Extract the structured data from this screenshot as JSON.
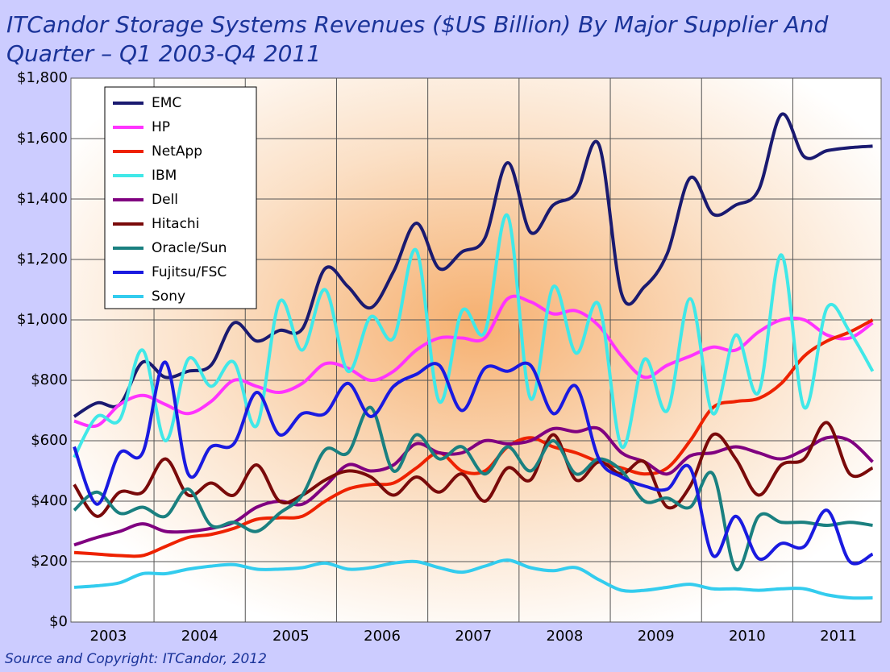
{
  "chart_data": {
    "type": "line",
    "title": [
      "ITCandor Storage Systems Revenues ($US Billion) By Major Supplier And",
      "Quarter – Q1 2003-Q4 2011"
    ],
    "source": "Source and Copyright: ITCandor, 2012",
    "categories": [
      "2003",
      null,
      null,
      null,
      "2004",
      null,
      null,
      null,
      "2005",
      null,
      null,
      null,
      "2006",
      null,
      null,
      null,
      "2007",
      null,
      null,
      null,
      "2008",
      null,
      null,
      null,
      "2009",
      null,
      null,
      null,
      "2010",
      null,
      null,
      null,
      "2011",
      null,
      null,
      null
    ],
    "ylim": [
      0,
      1800
    ],
    "yticks": [
      {
        "value": 0,
        "label": "$0"
      },
      {
        "value": 200,
        "label": "$200"
      },
      {
        "value": 400,
        "label": "$400"
      },
      {
        "value": 600,
        "label": "$600"
      },
      {
        "value": 800,
        "label": "$800"
      },
      {
        "value": 1000,
        "label": "$1,000"
      },
      {
        "value": 1200,
        "label": "$1,200"
      },
      {
        "value": 1400,
        "label": "$1,400"
      },
      {
        "value": 1600,
        "label": "$1,600"
      },
      {
        "value": 1800,
        "label": "$1,800"
      }
    ],
    "grid": true,
    "legend": "upper left",
    "series": [
      {
        "name": "EMC",
        "color": "#1a1a70",
        "values": [
          680,
          725,
          720,
          860,
          810,
          830,
          850,
          990,
          930,
          965,
          970,
          1170,
          1110,
          1040,
          1160,
          1320,
          1170,
          1225,
          1270,
          1520,
          1290,
          1380,
          1420,
          1580,
          1085,
          1110,
          1220,
          1470,
          1350,
          1380,
          1430,
          1680,
          1540,
          1560,
          1570,
          1575
        ]
      },
      {
        "name": "HP",
        "color": "#ff33ff",
        "values": [
          665,
          650,
          720,
          750,
          720,
          690,
          730,
          800,
          780,
          760,
          790,
          855,
          840,
          800,
          830,
          900,
          940,
          940,
          940,
          1070,
          1060,
          1020,
          1030,
          980,
          880,
          810,
          850,
          880,
          910,
          900,
          960,
          1000,
          1000,
          950,
          940,
          990
        ]
      },
      {
        "name": "NetApp",
        "color": "#ee2200",
        "values": [
          230,
          225,
          220,
          220,
          250,
          280,
          290,
          310,
          340,
          345,
          350,
          400,
          440,
          455,
          460,
          510,
          560,
          500,
          500,
          580,
          610,
          580,
          560,
          530,
          510,
          490,
          510,
          600,
          710,
          730,
          740,
          790,
          880,
          930,
          960,
          1000
        ]
      },
      {
        "name": "IBM",
        "color": "#40e8e8",
        "values": [
          545,
          680,
          670,
          900,
          600,
          870,
          780,
          860,
          650,
          1060,
          900,
          1100,
          830,
          1010,
          940,
          1230,
          730,
          1030,
          960,
          1345,
          740,
          1110,
          890,
          1050,
          580,
          870,
          700,
          1070,
          690,
          950,
          760,
          1215,
          710,
          1040,
          960,
          830
        ]
      },
      {
        "name": "Dell",
        "color": "#800080",
        "values": [
          255,
          280,
          300,
          325,
          300,
          300,
          310,
          330,
          380,
          400,
          390,
          450,
          520,
          500,
          520,
          590,
          560,
          560,
          600,
          590,
          600,
          640,
          630,
          640,
          560,
          530,
          490,
          550,
          560,
          580,
          560,
          540,
          570,
          610,
          600,
          530
        ]
      },
      {
        "name": "Hitachi",
        "color": "#7a0a0a",
        "values": [
          455,
          350,
          430,
          430,
          540,
          420,
          460,
          420,
          520,
          400,
          420,
          470,
          500,
          480,
          420,
          480,
          430,
          490,
          400,
          510,
          470,
          620,
          470,
          530,
          490,
          530,
          380,
          450,
          620,
          540,
          420,
          520,
          540,
          660,
          490,
          510
        ]
      },
      {
        "name": "Oracle/Sun",
        "color": "#1a8080",
        "values": [
          370,
          430,
          360,
          380,
          350,
          440,
          320,
          330,
          300,
          360,
          420,
          570,
          560,
          710,
          500,
          620,
          540,
          580,
          490,
          580,
          500,
          600,
          490,
          540,
          500,
          400,
          410,
          380,
          490,
          175,
          350,
          330,
          330,
          320,
          330,
          320
        ]
      },
      {
        "name": "Fujitsu/FSC",
        "color": "#1a1ae0",
        "values": [
          580,
          390,
          560,
          560,
          860,
          490,
          580,
          590,
          760,
          620,
          690,
          690,
          790,
          680,
          780,
          820,
          850,
          700,
          840,
          830,
          850,
          690,
          780,
          540,
          480,
          450,
          440,
          510,
          220,
          350,
          210,
          260,
          250,
          370,
          200,
          225
        ]
      },
      {
        "name": "Sony",
        "color": "#33ccee",
        "values": [
          115,
          120,
          130,
          160,
          160,
          175,
          185,
          190,
          175,
          175,
          180,
          195,
          175,
          180,
          195,
          200,
          180,
          165,
          185,
          205,
          180,
          170,
          180,
          140,
          105,
          105,
          115,
          125,
          110,
          110,
          105,
          110,
          110,
          90,
          80,
          80
        ]
      }
    ]
  }
}
